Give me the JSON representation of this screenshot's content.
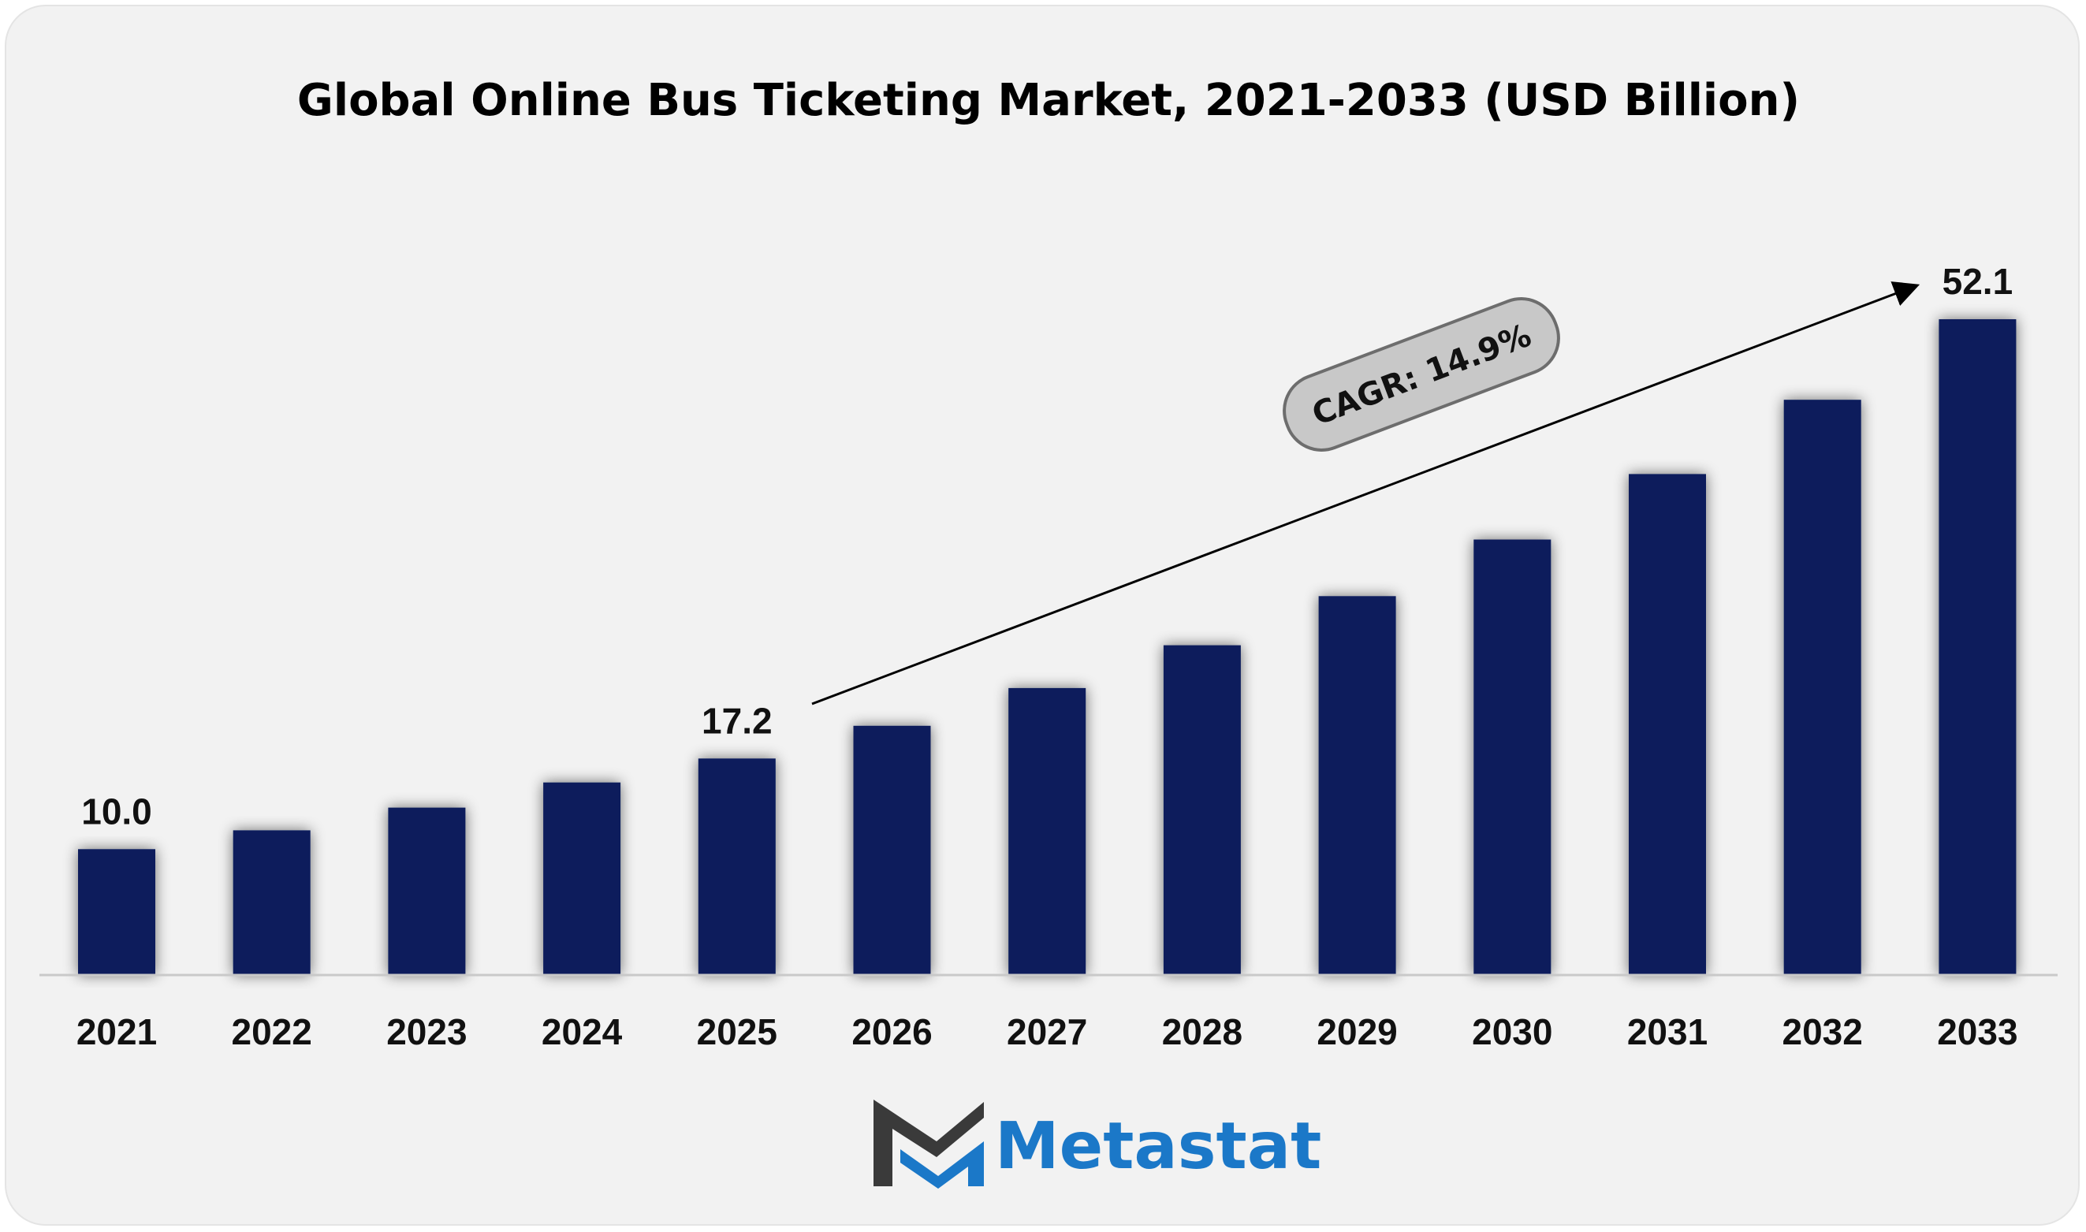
{
  "chart_data": {
    "type": "bar",
    "title": "Global Online Bus Ticketing Market, 2021-2033 (USD Billion)",
    "xlabel": "",
    "ylabel": "",
    "categories": [
      "2021",
      "2022",
      "2023",
      "2024",
      "2025",
      "2026",
      "2027",
      "2028",
      "2029",
      "2030",
      "2031",
      "2032",
      "2033"
    ],
    "values": [
      10.0,
      11.5,
      13.3,
      15.3,
      17.2,
      19.8,
      22.8,
      26.2,
      30.1,
      34.6,
      39.8,
      45.7,
      52.1
    ],
    "ylim": [
      0,
      55
    ],
    "grid": false,
    "legend": "none",
    "data_labels": [
      {
        "index": 0,
        "text": "10.0"
      },
      {
        "index": 4,
        "text": "17.2"
      },
      {
        "index": 12,
        "text": "52.1"
      }
    ],
    "annotation": {
      "text": "CAGR: 14.9%",
      "from_index": 4,
      "to_index": 12
    }
  },
  "brand": {
    "name": "Metastat",
    "logo": "metastat-m-logo"
  },
  "colors": {
    "bar": "#0b1f5c",
    "background": "#f2f2f2",
    "brand_blue": "#1b78c8",
    "brand_dark": "#3a3a3a",
    "cagr_fill": "#c8c8c8",
    "cagr_stroke": "#6d6d6d"
  }
}
